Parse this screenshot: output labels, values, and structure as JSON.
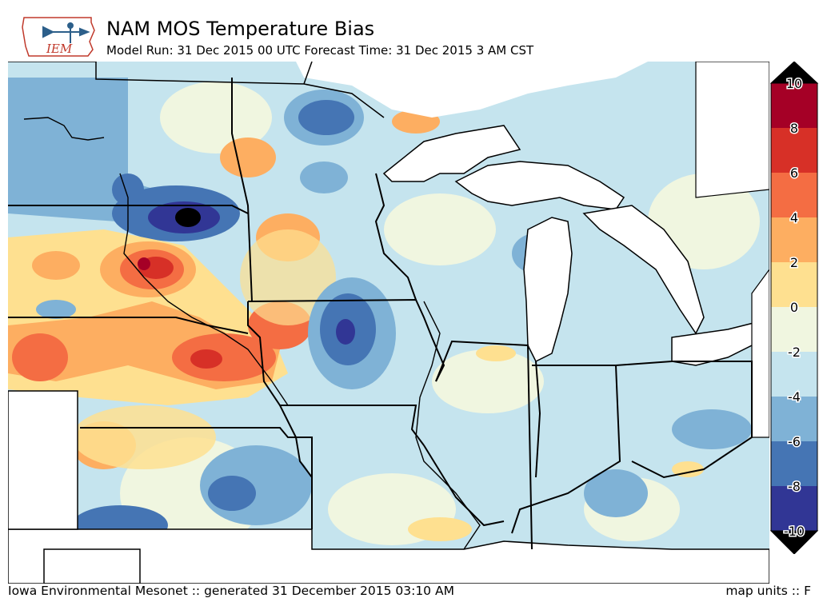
{
  "header": {
    "logo_text": "IEM",
    "title": "NAM MOS Temperature Bias",
    "subtitle": "Model Run: 31 Dec 2015 00 UTC Forecast Time: 31 Dec 2015 3 AM CST"
  },
  "colorbar": {
    "labels": [
      "10",
      "8",
      "6",
      "4",
      "2",
      "0",
      "-2",
      "-4",
      "-6",
      "-8",
      "-10"
    ],
    "colors": [
      "#a50026",
      "#d73027",
      "#f46d43",
      "#fdae61",
      "#fee090",
      "#f0f6e0",
      "#c5e4ee",
      "#7fb2d6",
      "#4575b4",
      "#313695"
    ]
  },
  "footer": {
    "source": "Iowa Environmental Mesonet :: generated 31 December 2015 03:10 AM",
    "units": "map units :: F"
  }
}
